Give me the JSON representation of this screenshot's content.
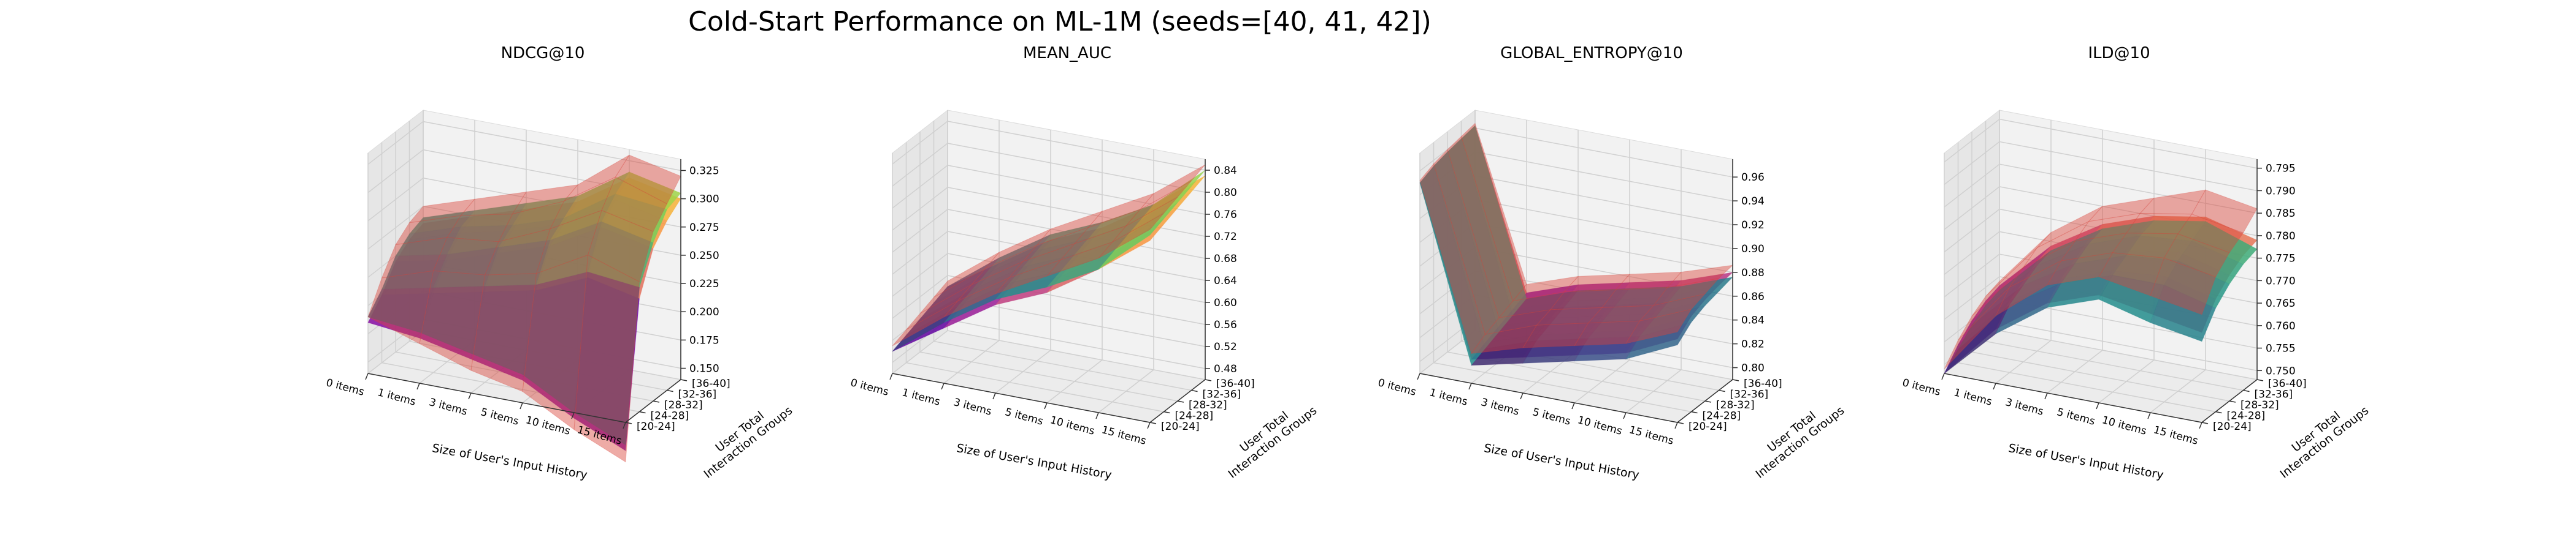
{
  "figure": {
    "title": "Cold-Start Performance on ML-1M (seeds=[40, 41, 42])"
  },
  "chart_data": [
    {
      "type": "surface3d",
      "title": "NDCG@10",
      "xlabel": "Size of User's Input History",
      "ylabel": "User Total\nInteraction Groups",
      "x_ticks": [
        "0 items",
        "1 items",
        "3 items",
        "5 items",
        "10 items",
        "15 items"
      ],
      "y_ticks": [
        "[20-24]",
        "[24-28]",
        "[28-32]",
        "[32-36]",
        "[36-40]"
      ],
      "z_ticks": [
        0.15,
        0.175,
        0.2,
        0.225,
        0.25,
        0.275,
        0.3,
        0.325
      ],
      "z_tick_labels": [
        "0.150",
        "0.175",
        "0.200",
        "0.225",
        "0.250",
        "0.275",
        "0.300",
        "0.325"
      ],
      "zlim": [
        0.14,
        0.335
      ],
      "series": [
        {
          "colormap": "plasma",
          "values": [
            [
              0.185,
              0.18,
              0.17,
              0.16,
              0.135,
              0.115
            ],
            [
              0.2,
              0.21,
              0.22,
              0.23,
              0.25,
              0.24
            ],
            [
              0.22,
              0.23,
              0.245,
              0.26,
              0.285,
              0.275
            ],
            [
              0.23,
              0.245,
              0.255,
              0.27,
              0.3,
              0.29
            ],
            [
              0.235,
              0.25,
              0.265,
              0.28,
              0.31,
              0.3
            ]
          ]
        },
        {
          "colormap": "viridis",
          "values": [
            [
              0.19,
              0.185,
              0.175,
              0.165,
              0.14,
              0.12
            ],
            [
              0.205,
              0.215,
              0.225,
              0.235,
              0.255,
              0.25
            ],
            [
              0.225,
              0.235,
              0.25,
              0.265,
              0.29,
              0.28
            ],
            [
              0.235,
              0.25,
              0.26,
              0.275,
              0.305,
              0.3
            ],
            [
              0.24,
              0.255,
              0.27,
              0.285,
              0.315,
              0.305
            ]
          ]
        },
        {
          "colormap": "std-band",
          "color": "#d9443a",
          "values": [
            [
              0.19,
              0.175,
              0.16,
              0.15,
              0.125,
              0.105
            ],
            [
              0.215,
              0.23,
              0.235,
              0.245,
              0.27,
              0.255
            ],
            [
              0.235,
              0.25,
              0.255,
              0.275,
              0.3,
              0.29
            ],
            [
              0.245,
              0.26,
              0.27,
              0.29,
              0.32,
              0.305
            ],
            [
              0.25,
              0.265,
              0.28,
              0.295,
              0.33,
              0.32
            ]
          ]
        }
      ]
    },
    {
      "type": "surface3d",
      "title": "MEAN_AUC",
      "xlabel": "Size of User's Input History",
      "ylabel": "User Total\nInteraction Groups",
      "x_ticks": [
        "0 items",
        "1 items",
        "3 items",
        "5 items",
        "10 items",
        "15 items"
      ],
      "y_ticks": [
        "[20-24]",
        "[24-28]",
        "[28-32]",
        "[32-36]",
        "[36-40]"
      ],
      "z_ticks": [
        0.48,
        0.52,
        0.56,
        0.6,
        0.64,
        0.68,
        0.72,
        0.76,
        0.8,
        0.84
      ],
      "z_tick_labels": [
        "0.48",
        "0.52",
        "0.56",
        "0.60",
        "0.64",
        "0.68",
        "0.72",
        "0.76",
        "0.80",
        "0.84"
      ],
      "zlim": [
        0.46,
        0.86
      ],
      "series": [
        {
          "colormap": "plasma",
          "values": [
            [
              0.5,
              0.56,
              0.62,
              0.66,
              0.72,
              0.79
            ],
            [
              0.51,
              0.57,
              0.63,
              0.67,
              0.73,
              0.8
            ],
            [
              0.52,
              0.58,
              0.64,
              0.68,
              0.74,
              0.81
            ],
            [
              0.53,
              0.59,
              0.65,
              0.69,
              0.75,
              0.82
            ],
            [
              0.54,
              0.6,
              0.66,
              0.7,
              0.76,
              0.83
            ]
          ]
        },
        {
          "colormap": "viridis",
          "values": [
            [
              0.5,
              0.57,
              0.63,
              0.67,
              0.72,
              0.8
            ],
            [
              0.51,
              0.58,
              0.64,
              0.68,
              0.73,
              0.81
            ],
            [
              0.52,
              0.59,
              0.65,
              0.69,
              0.74,
              0.82
            ],
            [
              0.53,
              0.6,
              0.66,
              0.7,
              0.75,
              0.83
            ],
            [
              0.54,
              0.61,
              0.67,
              0.71,
              0.76,
              0.84
            ]
          ]
        },
        {
          "colormap": "std-band",
          "color": "#d9443a",
          "values": [
            [
              0.51,
              0.58,
              0.64,
              0.69,
              0.74,
              0.81
            ],
            [
              0.52,
              0.59,
              0.65,
              0.7,
              0.75,
              0.82
            ],
            [
              0.53,
              0.6,
              0.66,
              0.71,
              0.76,
              0.83
            ],
            [
              0.54,
              0.61,
              0.67,
              0.72,
              0.77,
              0.84
            ],
            [
              0.55,
              0.62,
              0.68,
              0.73,
              0.78,
              0.85
            ]
          ]
        }
      ]
    },
    {
      "type": "surface3d",
      "title": "GLOBAL_ENTROPY@10",
      "xlabel": "Size of User's Input History",
      "ylabel": "User Total\nInteraction Groups",
      "x_ticks": [
        "0 items",
        "1 items",
        "3 items",
        "5 items",
        "10 items",
        "15 items"
      ],
      "y_ticks": [
        "[20-24]",
        "[24-28]",
        "[28-32]",
        "[32-36]",
        "[36-40]"
      ],
      "z_ticks": [
        0.8,
        0.82,
        0.84,
        0.86,
        0.88,
        0.9,
        0.92,
        0.94,
        0.96
      ],
      "z_tick_labels": [
        "0.80",
        "0.82",
        "0.84",
        "0.86",
        "0.88",
        "0.90",
        "0.92",
        "0.94",
        "0.96"
      ],
      "zlim": [
        0.79,
        0.975
      ],
      "series": [
        {
          "colormap": "plasma",
          "values": [
            [
              0.95,
              0.81,
              0.82,
              0.83,
              0.84,
              0.86
            ],
            [
              0.955,
              0.815,
              0.83,
              0.84,
              0.85,
              0.87
            ],
            [
              0.958,
              0.82,
              0.835,
              0.845,
              0.855,
              0.875
            ],
            [
              0.96,
              0.825,
              0.84,
              0.85,
              0.86,
              0.878
            ],
            [
              0.962,
              0.83,
              0.845,
              0.855,
              0.865,
              0.88
            ]
          ]
        },
        {
          "colormap": "viridis",
          "values": [
            [
              0.95,
              0.805,
              0.815,
              0.825,
              0.835,
              0.855
            ],
            [
              0.955,
              0.81,
              0.825,
              0.835,
              0.845,
              0.865
            ],
            [
              0.958,
              0.815,
              0.83,
              0.84,
              0.85,
              0.87
            ],
            [
              0.96,
              0.82,
              0.835,
              0.845,
              0.855,
              0.873
            ],
            [
              0.962,
              0.825,
              0.84,
              0.85,
              0.86,
              0.876
            ]
          ]
        },
        {
          "colormap": "std-band",
          "color": "#d9443a",
          "values": [
            [
              0.952,
              0.815,
              0.828,
              0.838,
              0.848,
              0.866
            ],
            [
              0.957,
              0.822,
              0.838,
              0.848,
              0.858,
              0.876
            ],
            [
              0.96,
              0.827,
              0.842,
              0.852,
              0.862,
              0.88
            ],
            [
              0.962,
              0.832,
              0.848,
              0.858,
              0.868,
              0.884
            ],
            [
              0.964,
              0.837,
              0.852,
              0.862,
              0.872,
              0.886
            ]
          ]
        }
      ]
    },
    {
      "type": "surface3d",
      "title": "ILD@10",
      "xlabel": "Size of User's Input History",
      "ylabel": "User Total\nInteraction Groups",
      "x_ticks": [
        "0 items",
        "1 items",
        "3 items",
        "5 items",
        "10 items",
        "15 items"
      ],
      "y_ticks": [
        "[20-24]",
        "[24-28]",
        "[28-32]",
        "[32-36]",
        "[36-40]"
      ],
      "z_ticks": [
        0.75,
        0.755,
        0.76,
        0.765,
        0.77,
        0.775,
        0.78,
        0.785,
        0.79,
        0.795
      ],
      "z_tick_labels": [
        "0.750",
        "0.755",
        "0.760",
        "0.765",
        "0.770",
        "0.775",
        "0.780",
        "0.785",
        "0.790",
        "0.795"
      ],
      "zlim": [
        0.748,
        0.797
      ],
      "series": [
        {
          "colormap": "plasma",
          "values": [
            [
              0.748,
              0.76,
              0.768,
              0.772,
              0.77,
              0.768
            ],
            [
              0.752,
              0.764,
              0.771,
              0.775,
              0.776,
              0.773
            ],
            [
              0.755,
              0.766,
              0.773,
              0.777,
              0.779,
              0.776
            ],
            [
              0.757,
              0.768,
              0.775,
              0.779,
              0.78,
              0.778
            ],
            [
              0.758,
              0.769,
              0.776,
              0.78,
              0.782,
              0.779
            ]
          ]
        },
        {
          "colormap": "viridis",
          "values": [
            [
              0.748,
              0.759,
              0.767,
              0.771,
              0.768,
              0.766
            ],
            [
              0.751,
              0.763,
              0.77,
              0.774,
              0.774,
              0.771
            ],
            [
              0.754,
              0.765,
              0.772,
              0.776,
              0.777,
              0.774
            ],
            [
              0.756,
              0.767,
              0.774,
              0.778,
              0.779,
              0.776
            ],
            [
              0.757,
              0.768,
              0.775,
              0.779,
              0.781,
              0.777
            ]
          ]
        },
        {
          "colormap": "std-band",
          "color": "#d9443a",
          "values": [
            [
              0.749,
              0.763,
              0.772,
              0.776,
              0.774,
              0.772
            ],
            [
              0.753,
              0.767,
              0.775,
              0.779,
              0.78,
              0.778
            ],
            [
              0.756,
              0.769,
              0.777,
              0.781,
              0.783,
              0.781
            ],
            [
              0.758,
              0.771,
              0.779,
              0.783,
              0.785,
              0.783
            ],
            [
              0.759,
              0.772,
              0.78,
              0.784,
              0.788,
              0.786
            ]
          ]
        }
      ]
    }
  ]
}
